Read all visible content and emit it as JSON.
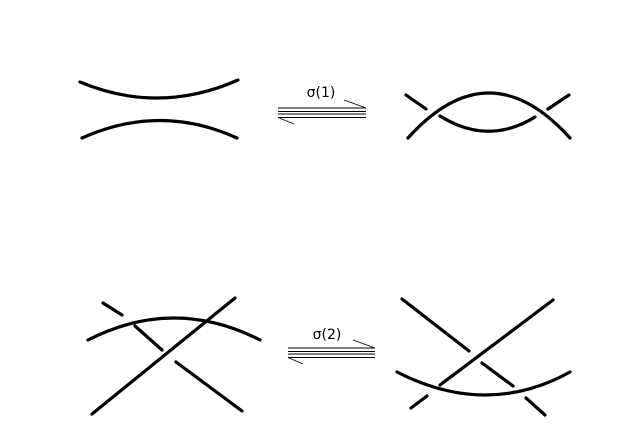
{
  "moves": [
    {
      "label": "σ(1)"
    },
    {
      "label": "σ(2)"
    }
  ],
  "colors": {
    "stroke": "#000000",
    "background": "#ffffff"
  }
}
